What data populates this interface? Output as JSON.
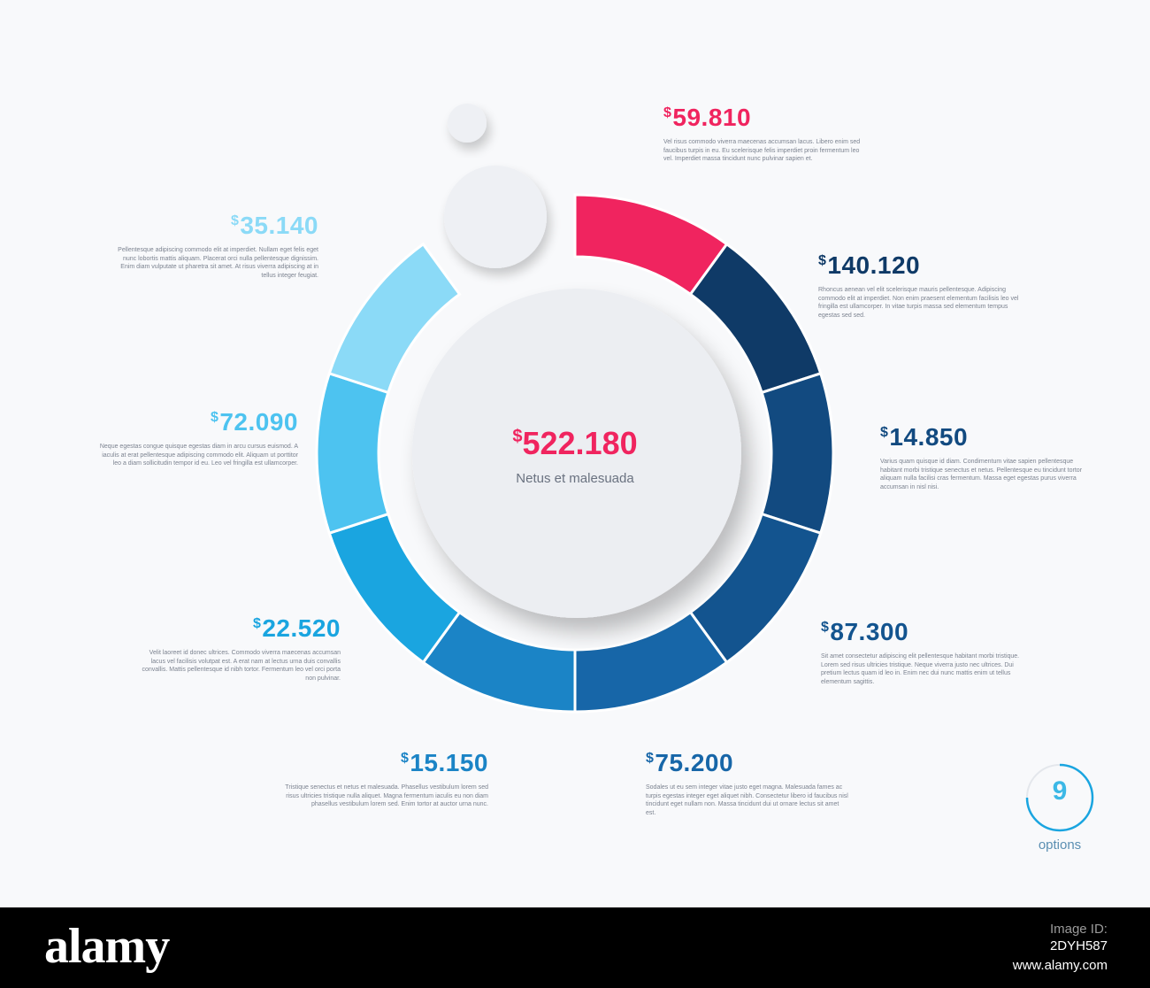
{
  "center": {
    "currency": "$",
    "value": "522.180",
    "label": "Netus et malesuada"
  },
  "segments": [
    {
      "currency": "$",
      "value": "59.810",
      "color": "#f0245f",
      "desc": "Vel risus commodo viverra maecenas accumsan lacus. Libero enim sed faucibus turpis in eu. Eu scelerisque felis imperdiet proin fermentum leo vel. Imperdiet massa tincidunt nunc pulvinar sapien et."
    },
    {
      "currency": "$",
      "value": "140.120",
      "color": "#0f3a67",
      "desc": "Rhoncus aenean vel elit scelerisque mauris pellentesque. Adipiscing commodo elit at imperdiet. Non enim praesent elementum facilisis leo vel fringilla est ullamcorper. In vitae turpis massa sed elementum tempus egestas sed sed."
    },
    {
      "currency": "$",
      "value": "14.850",
      "color": "#124a80",
      "desc": "Varius quam quisque id diam. Condimentum vitae sapien pellentesque habitant morbi tristique senectus et netus. Pellentesque eu tincidunt tortor aliquam nulla facilisi cras fermentum. Massa eget egestas purus viverra accumsan in nisl nisi."
    },
    {
      "currency": "$",
      "value": "87.300",
      "color": "#13548f",
      "desc": "Sit amet consectetur adipiscing elit pellentesque habitant morbi tristique. Lorem sed risus ultricies tristique. Neque viverra justo nec ultrices. Dui pretium lectus quam id leo in. Enim nec dui nunc mattis enim ut tellus elementum sagittis."
    },
    {
      "currency": "$",
      "value": "75.200",
      "color": "#1766a8",
      "desc": "Sodales ut eu sem integer vitae justo eget magna. Malesuada fames ac turpis egestas integer eget aliquet nibh. Consectetur libero id faucibus nisl tincidunt eget nullam non. Massa tincidunt dui ut ornare lectus sit amet est."
    },
    {
      "currency": "$",
      "value": "15.150",
      "color": "#1b84c6",
      "desc": "Tristique senectus et netus et malesuada. Phasellus vestibulum lorem sed risus ultricies tristique nulla aliquet. Magna fermentum iaculis eu non diam phasellus vestibulum lorem sed. Enim tortor at auctor urna nunc."
    },
    {
      "currency": "$",
      "value": "22.520",
      "color": "#1aa5e0",
      "desc": "Velit laoreet id donec ultrices. Commodo viverra maecenas accumsan lacus vel facilisis volutpat est. A erat nam at lectus urna duis convallis convallis. Mattis pellentesque id nibh tortor. Fermentum leo vel orci porta non pulvinar."
    },
    {
      "currency": "$",
      "value": "72.090",
      "color": "#4dc3f0",
      "desc": "Neque egestas congue quisque egestas diam in arcu cursus euismod. A iaculis at erat pellentesque adipiscing commodo elit. Aliquam ut porttitor leo a diam sollicitudin tempor id eu. Leo vel fringilla est ullamcorper."
    },
    {
      "currency": "$",
      "value": "35.140",
      "color": "#8bdaf7",
      "desc": "Pellentesque adipiscing commodo elit at imperdiet. Nullam eget felis eget nunc lobortis mattis aliquam. Placerat orci nulla pellentesque dignissim. Enim diam vulputate ut pharetra sit amet. At risus viverra adipiscing at in tellus integer feugiat."
    }
  ],
  "badge": {
    "number": "9",
    "label": "options",
    "color": "#3cb8e6"
  },
  "watermark": {
    "logo": "alamy",
    "image_id_label": "Image ID:",
    "image_id": "2DYH587",
    "url": "www.alamy.com"
  }
}
